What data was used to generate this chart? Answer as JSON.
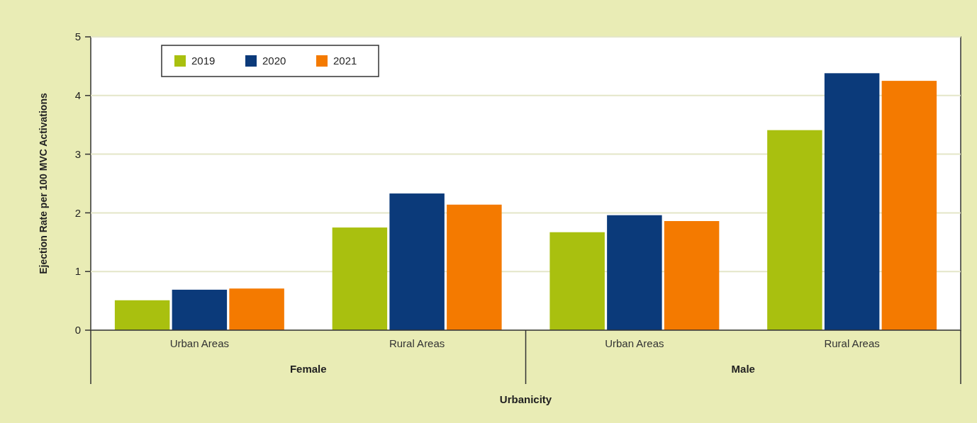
{
  "chart_data": {
    "type": "bar",
    "ylabel": "Ejection Rate per 100 MVC Activations",
    "xlabel": "Urbanicity",
    "categories": [
      "Urban Areas",
      "Rural Areas",
      "Urban Areas",
      "Rural Areas"
    ],
    "annotations": [
      "Female",
      "Male"
    ],
    "series": [
      {
        "name": "2019",
        "color": "#a9c00f",
        "values": [
          0.51,
          1.75,
          1.67,
          3.41
        ]
      },
      {
        "name": "2020",
        "color": "#0b3a7a",
        "values": [
          0.69,
          2.33,
          1.96,
          4.38
        ]
      },
      {
        "name": "2021",
        "color": "#f47a00",
        "values": [
          0.71,
          2.14,
          1.86,
          4.25
        ]
      }
    ],
    "ylim": [
      0,
      5
    ],
    "yticks": [
      0,
      1,
      2,
      3,
      4,
      5
    ],
    "grid": "y",
    "legend": "top left"
  }
}
